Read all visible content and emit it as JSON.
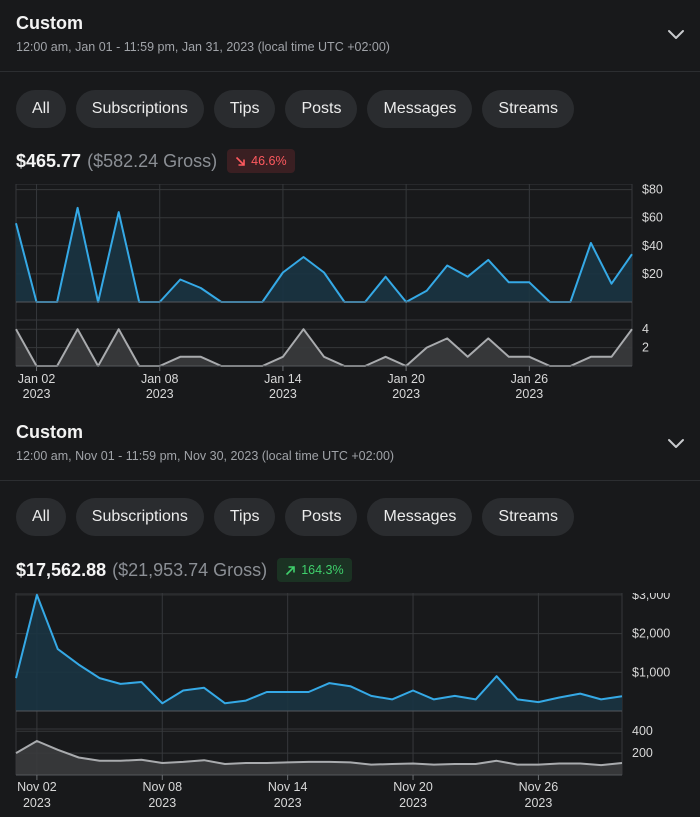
{
  "colors": {
    "main_line": "#35a9e6",
    "main_fill": "#1a3442",
    "sub_line": "#a9abae",
    "sub_fill": "#3a3b3d",
    "grid": "#36383b",
    "active_tab": "#19384c"
  },
  "panels": [
    {
      "header": {
        "title": "Custom",
        "range": "12:00 am, Jan 01 - 11:59 pm, Jan 31, 2023 (local time UTC +02:00)",
        "expand_icon": "chevron-down-icon"
      },
      "tabs": [
        {
          "label": "All",
          "active": true
        },
        {
          "label": "Subscriptions",
          "active": false
        },
        {
          "label": "Tips",
          "active": false
        },
        {
          "label": "Posts",
          "active": false
        },
        {
          "label": "Messages",
          "active": false
        },
        {
          "label": "Streams",
          "active": false
        }
      ],
      "summary": {
        "net": "$465.77",
        "gross": "($582.24 Gross)",
        "change": "46.6%",
        "direction": "down",
        "change_icon": "arrow-down-right-icon"
      },
      "chart_data": {
        "type": "area",
        "main": {
          "values": [
            56,
            0,
            0,
            67,
            0,
            64,
            0,
            0,
            16,
            10,
            0,
            0,
            0,
            21,
            32,
            21,
            0,
            0,
            18,
            0,
            8,
            26,
            18,
            30,
            14,
            14,
            0,
            0,
            42,
            13,
            34
          ],
          "ylim": [
            0,
            84
          ],
          "ticks": [
            20,
            40,
            60,
            80
          ],
          "tick_labels": [
            "$20",
            "$40",
            "$60",
            "$80"
          ]
        },
        "sub": {
          "values": [
            4,
            0,
            0,
            4,
            0,
            4,
            0,
            0,
            1,
            1,
            0,
            0,
            0,
            1,
            4,
            1,
            0,
            0,
            1,
            0,
            2,
            3,
            1,
            3,
            1,
            1,
            0,
            0,
            1,
            1,
            4
          ],
          "ylim": [
            0,
            5
          ],
          "ticks": [
            2,
            4
          ],
          "tick_labels": [
            "2",
            "4"
          ]
        },
        "x_ticks": [
          {
            "index": 1,
            "label": "Jan 02",
            "year": "2023"
          },
          {
            "index": 7,
            "label": "Jan 08",
            "year": "2023"
          },
          {
            "index": 13,
            "label": "Jan 14",
            "year": "2023"
          },
          {
            "index": 19,
            "label": "Jan 20",
            "year": "2023"
          },
          {
            "index": 25,
            "label": "Jan 26",
            "year": "2023"
          }
        ]
      }
    },
    {
      "header": {
        "title": "Custom",
        "range": "12:00 am, Nov 01 - 11:59 pm, Nov 30, 2023 (local time UTC +02:00)",
        "expand_icon": "chevron-down-icon"
      },
      "tabs": [
        {
          "label": "All",
          "active": true
        },
        {
          "label": "Subscriptions",
          "active": false
        },
        {
          "label": "Tips",
          "active": false
        },
        {
          "label": "Posts",
          "active": false
        },
        {
          "label": "Messages",
          "active": false
        },
        {
          "label": "Streams",
          "active": false
        }
      ],
      "summary": {
        "net": "$17,562.88",
        "gross": "($21,953.74 Gross)",
        "change": "164.3%",
        "direction": "up",
        "change_icon": "arrow-up-right-icon"
      },
      "chart_data": {
        "type": "area",
        "main": {
          "values": [
            850,
            3000,
            1600,
            1200,
            850,
            700,
            750,
            200,
            530,
            600,
            200,
            270,
            490,
            490,
            490,
            720,
            640,
            390,
            300,
            530,
            300,
            390,
            300,
            900,
            300,
            230,
            350,
            450,
            300,
            380
          ],
          "ylim": [
            0,
            3050
          ],
          "ticks": [
            1000,
            2000,
            3000
          ],
          "tick_labels": [
            "$1,000",
            "$2,000",
            "$3,000"
          ]
        },
        "sub": {
          "values": [
            200,
            310,
            230,
            160,
            130,
            130,
            140,
            110,
            120,
            135,
            100,
            110,
            110,
            115,
            120,
            120,
            115,
            95,
            100,
            105,
            95,
            100,
            100,
            130,
            95,
            95,
            105,
            105,
            90,
            110
          ],
          "ylim": [
            0,
            420
          ],
          "ticks": [
            200,
            400
          ],
          "tick_labels": [
            "200",
            "400"
          ]
        },
        "x_ticks": [
          {
            "index": 1,
            "label": "Nov 02",
            "year": "2023"
          },
          {
            "index": 7,
            "label": "Nov 08",
            "year": "2023"
          },
          {
            "index": 13,
            "label": "Nov 14",
            "year": "2023"
          },
          {
            "index": 19,
            "label": "Nov 20",
            "year": "2023"
          },
          {
            "index": 25,
            "label": "Nov 26",
            "year": "2023"
          }
        ]
      }
    }
  ]
}
